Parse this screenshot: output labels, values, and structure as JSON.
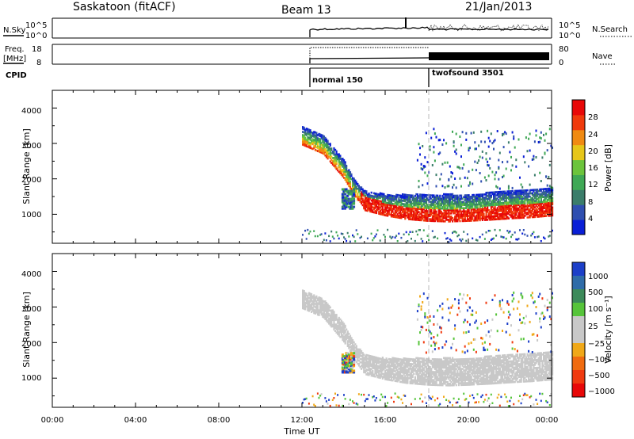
{
  "header": {
    "station": "Saskatoon (fitACF)",
    "beam": "Beam 13",
    "date": "21/Jan/2013"
  },
  "top_panels": {
    "nsky_label": "N.Sky",
    "nsky_ticks": [
      "10^5",
      "10^0"
    ],
    "nsearch_label": "N.Search",
    "nsearch_ticks": [
      "10^5",
      "10^0"
    ],
    "freq_label_1": "Freq.",
    "freq_label_2": "[MHz]",
    "freq_ticks": [
      "18",
      "8"
    ],
    "nave_label": "Nave",
    "nave_ticks": [
      "80",
      "0"
    ],
    "cpid_label": "CPID",
    "modes": [
      {
        "name": "normal 150",
        "start_hour": 12
      },
      {
        "name": "twofsound 3501",
        "start_hour": 18
      }
    ]
  },
  "chart_data": [
    {
      "type": "heatmap",
      "panel": "power",
      "ylabel": "Slant Range [km]",
      "xlabel": "Time UT",
      "x_range_hours": [
        0,
        24
      ],
      "ylim": [
        180,
        4500
      ],
      "yticks": [
        "1000",
        "2000",
        "3000",
        "4000"
      ],
      "xticks": [
        "00:00",
        "04:00",
        "08:00",
        "12:00",
        "16:00",
        "20:00",
        "00:00"
      ],
      "colorbar_label": "Power [dB]",
      "colorbar_ticks": [
        "4",
        "8",
        "12",
        "16",
        "20",
        "24",
        "28"
      ],
      "colorbar_range": [
        0,
        32
      ],
      "colors": [
        "#0a1fd6",
        "#2f4fb0",
        "#3b7d6a",
        "#3fa855",
        "#6cc43c",
        "#e6c619",
        "#f08a12",
        "#f03a0c",
        "#e80808"
      ],
      "data_start_hour": 12,
      "echo_band": [
        {
          "t": 12.0,
          "center": 3300,
          "top": 3450,
          "bottom": 2950
        },
        {
          "t": 13.0,
          "center": 3000,
          "top": 3200,
          "bottom": 2700
        },
        {
          "t": 14.0,
          "center": 2300,
          "top": 2500,
          "bottom": 2000
        },
        {
          "t": 14.5,
          "center": 1700,
          "top": 1950,
          "bottom": 1500
        },
        {
          "t": 15.0,
          "center": 1350,
          "top": 1650,
          "bottom": 1100
        },
        {
          "t": 16.0,
          "center": 1150,
          "top": 1550,
          "bottom": 950
        },
        {
          "t": 17.0,
          "center": 1050,
          "top": 1550,
          "bottom": 850
        },
        {
          "t": 18.0,
          "center": 1000,
          "top": 1550,
          "bottom": 800
        },
        {
          "t": 19.0,
          "center": 950,
          "top": 1550,
          "bottom": 780
        },
        {
          "t": 20.0,
          "center": 980,
          "top": 1550,
          "bottom": 800
        },
        {
          "t": 21.0,
          "center": 1050,
          "top": 1600,
          "bottom": 830
        },
        {
          "t": 22.0,
          "center": 1100,
          "top": 1650,
          "bottom": 870
        },
        {
          "t": 23.0,
          "center": 1150,
          "top": 1700,
          "bottom": 900
        },
        {
          "t": 24.0,
          "center": 1200,
          "top": 1750,
          "bottom": 950
        }
      ]
    },
    {
      "type": "heatmap",
      "panel": "velocity",
      "ylabel": "Slant Range [km]",
      "xlabel": "Time UT",
      "x_range_hours": [
        0,
        24
      ],
      "ylim": [
        180,
        4500
      ],
      "yticks": [
        "1000",
        "2000",
        "3000",
        "4000"
      ],
      "xticks": [
        "00:00",
        "04:00",
        "08:00",
        "12:00",
        "16:00",
        "20:00",
        "00:00"
      ],
      "colorbar_label": "Velocity [m s⁻¹]",
      "colorbar_ticks": [
        "1000",
        "500",
        "100",
        "25",
        "−25",
        "−100",
        "−500",
        "−1000"
      ],
      "colors": [
        "#1c3fc8",
        "#2f6ca8",
        "#3c8a5a",
        "#56c43a",
        "#c8c8c8",
        "#c8c8c8",
        "#f0a818",
        "#f06b10",
        "#f03a10",
        "#e80808"
      ],
      "ground_scatter_color": "#c8c8c8"
    }
  ]
}
